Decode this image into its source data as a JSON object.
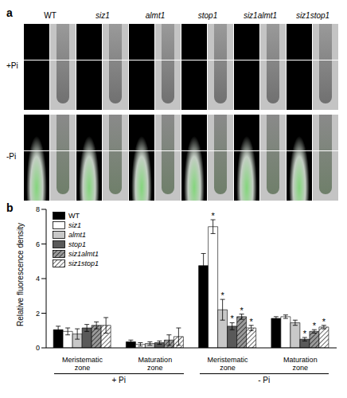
{
  "panel_a": {
    "label": "a",
    "genotypes": [
      "WT",
      "siz1",
      "almt1",
      "stop1",
      "siz1almt1",
      "siz1stop1"
    ],
    "conditions": [
      "+Pi",
      "-Pi"
    ]
  },
  "chart_data": {
    "type": "bar",
    "title": "b",
    "y_label": "Relative fluorescence density",
    "categories": [
      "Meristematic zone",
      "Maturation zone",
      "Meristematic zone",
      "Maturation zone"
    ],
    "x_groups": [
      "+ Pi",
      "- Pi"
    ],
    "ylim": [
      0,
      8
    ],
    "yticks": [
      0,
      2,
      4,
      6,
      8
    ],
    "legend": "upper left",
    "series": [
      {
        "name": "WT",
        "color": "#000000",
        "values": [
          1.05,
          0.35,
          4.75,
          1.7
        ],
        "errors": [
          0.2,
          0.1,
          0.7,
          0.1
        ],
        "significance": [
          null,
          null,
          null,
          null
        ]
      },
      {
        "name": "siz1",
        "color": "#ffffff",
        "values": [
          0.95,
          0.2,
          7.0,
          1.8
        ],
        "errors": [
          0.2,
          0.1,
          0.4,
          0.1
        ],
        "significance": [
          null,
          null,
          "*",
          null
        ]
      },
      {
        "name": "almt1",
        "color": "#c8c8c8",
        "values": [
          0.8,
          0.25,
          2.2,
          1.45
        ],
        "errors": [
          0.3,
          0.1,
          0.6,
          0.15
        ],
        "significance": [
          null,
          null,
          "*",
          null
        ]
      },
      {
        "name": "stop1",
        "color": "#595959",
        "values": [
          1.15,
          0.3,
          1.25,
          0.5
        ],
        "errors": [
          0.2,
          0.1,
          0.2,
          0.1
        ],
        "significance": [
          null,
          null,
          "*",
          "*"
        ]
      },
      {
        "name": "siz1almt1",
        "color": "#9a9a9a",
        "values": [
          1.3,
          0.45,
          1.8,
          0.95
        ],
        "errors": [
          0.2,
          0.3,
          0.15,
          0.1
        ],
        "significance": [
          null,
          null,
          "*",
          "*"
        ]
      },
      {
        "name": "siz1stop1",
        "color": "#ffffff",
        "values": [
          1.3,
          0.65,
          1.15,
          1.2
        ],
        "errors": [
          0.45,
          0.5,
          0.15,
          0.1
        ],
        "significance": [
          null,
          null,
          "*",
          "*"
        ]
      }
    ]
  }
}
